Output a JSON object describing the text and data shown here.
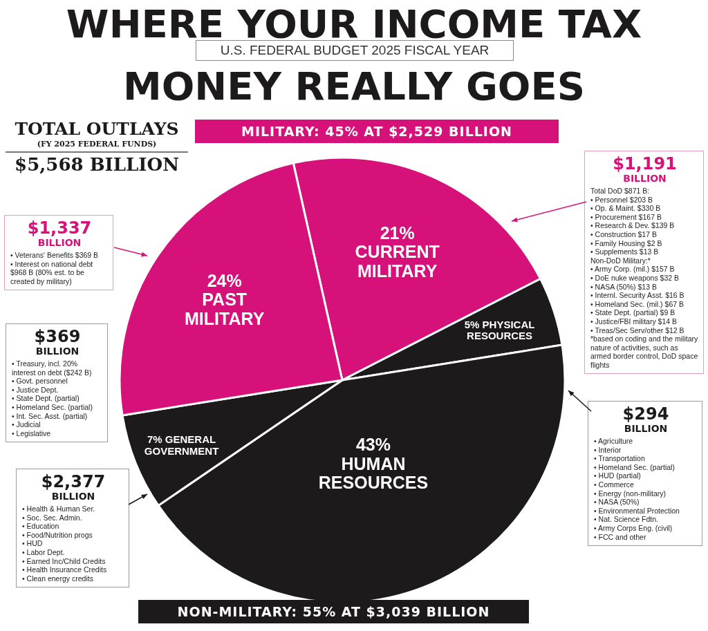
{
  "chart_data": {
    "type": "pie",
    "title": "WHERE YOUR INCOME TAX MONEY REALLY GOES",
    "subtitle": "U.S. FEDERAL BUDGET 2025 FISCAL YEAR",
    "categories": [
      "CURRENT MILITARY",
      "PHYSICAL RESOURCES",
      "HUMAN RESOURCES",
      "GENERAL GOVERNMENT",
      "PAST MILITARY"
    ],
    "values": [
      21,
      5,
      43,
      7,
      24
    ],
    "value_labels": [
      "21%",
      "5%",
      "43%",
      "7%",
      "24%"
    ],
    "colors": [
      "#d6127a",
      "#1c1a1b",
      "#1c1a1b",
      "#1c1a1b",
      "#d6127a"
    ],
    "legend": false,
    "annotations": [
      "TOTAL OUTLAYS\n(FY 2025 FEDERAL FUNDS)\n$5,568 BILLION",
      "MILITARY: 45% AT $2,529 BILLION",
      "NON-MILITARY: 55% AT $3,039 BILLION",
      "$1,337\nBILLION\n• Veterans' Benefits $369 B\n• Interest on national debt $968 B (80% est. to be created by military)",
      "$369\nBILLION\n• Treasury, incl. 20% interest on debt ($242 B)\n• Govt. personnel\n• Justice Dept.\n• State Dept. (partial)\n• Homeland Sec. (partial)\n• Int. Sec. Asst. (partial)\n• Judicial\n• Legislative",
      "$2,377\nBILLION\n• Health & Human Ser.\n• Soc. Sec. Admin.\n• Education\n• Food/Nutrition progs\n• HUD\n• Labor Dept.\n• Earned Inc/Child Credits\n• Health Insurance Credits\n• Clean energy credits",
      "$1,191\nBILLION\nTotal DoD $871 B:\n• Personnel $203 B\n• Op. & Maint. $330 B\n• Procurement $167 B\n• Research & Dev. $139 B\n• Construction $17 B\n• Family Housing $2 B\n• Supplements $13 B\nNon-DoD Military:*\n• Army Corp. (mil.) $157 B\n• DoE nuke weapons $32 B\n• NASA (50%) $13 B\n• Internl. Security Asst. $16 B\n• Homeland Sec. (mil.) $67 B\n• State Dept. (partial) $9 B\n• Justice/FBI military $14 B\n• Treas/Sec Serv/other $12 B\n*based on coding and the military nature of activities, such as armed border control, DoD space flights",
      "$294\nBILLION\n• Agriculture\n• Interior\n• Transportation\n• Homeland Sec. (partial)\n• HUD (partial)\n• Commerce\n• Energy (non-military)\n• NASA (50%)\n• Environmental Protection\n• Nat. Science Fdtn.\n• Army Corps Eng. (civil)\n• FCC and other"
    ]
  }
}
